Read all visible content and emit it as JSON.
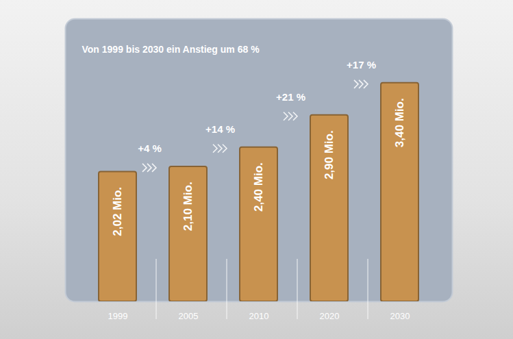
{
  "chart_data": {
    "type": "bar",
    "title": "Von 1999 bis 2030 ein Anstieg um 68 %",
    "categories": [
      "1999",
      "2005",
      "2010",
      "2020",
      "2030"
    ],
    "values": [
      2.02,
      2.1,
      2.4,
      2.9,
      3.4
    ],
    "value_labels": [
      "2,02 Mio.",
      "2,10 Mio.",
      "2,40 Mio.",
      "2,90 Mio.",
      "3,40 Mio."
    ],
    "annotations": [
      "+4 %",
      "+14 %",
      "+21 %",
      "+17 %"
    ],
    "color": "#c8924f",
    "ylim": [
      0,
      4.4
    ],
    "data_labels": true,
    "tick_labels": "x",
    "grid": false
  }
}
